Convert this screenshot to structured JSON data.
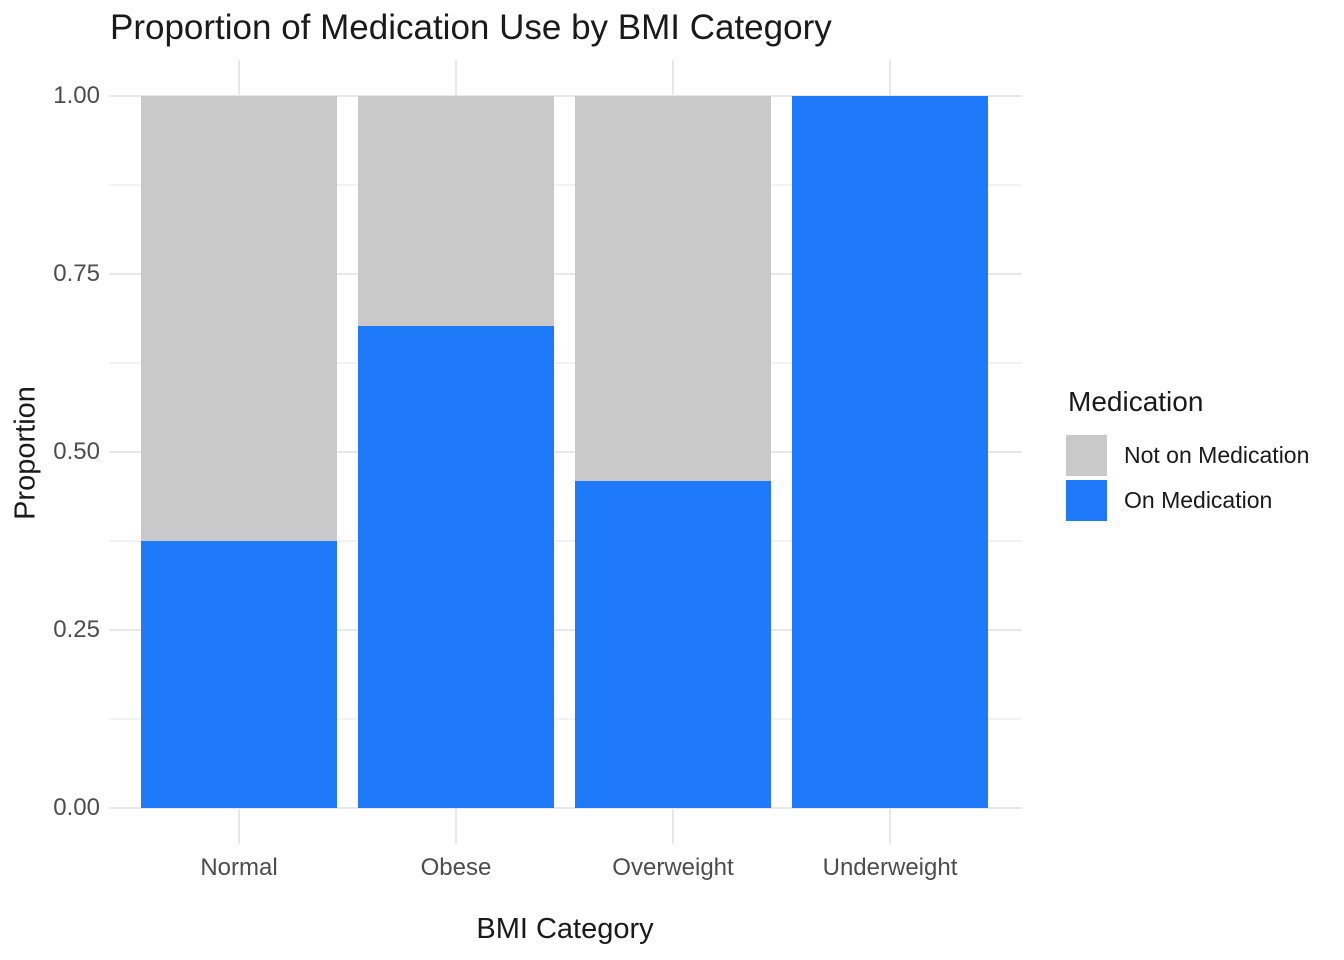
{
  "chart_data": {
    "type": "bar",
    "stacked": true,
    "orientation": "vertical",
    "title": "Proportion of Medication Use by BMI Category",
    "xlabel": "BMI Category",
    "ylabel": "Proportion",
    "categories": [
      "Normal",
      "Obese",
      "Overweight",
      "Underweight"
    ],
    "series": [
      {
        "name": "On Medication",
        "color": "#1e7af8",
        "values": [
          0.375,
          0.677,
          0.459,
          1.0
        ]
      },
      {
        "name": "Not on Medication",
        "color": "#c9c9c9",
        "values": [
          0.625,
          0.323,
          0.541,
          0.0
        ]
      }
    ],
    "ylim": [
      0,
      1
    ],
    "yticks": [
      {
        "value": 0.0,
        "label": "0.00"
      },
      {
        "value": 0.25,
        "label": "0.25"
      },
      {
        "value": 0.5,
        "label": "0.50"
      },
      {
        "value": 0.75,
        "label": "0.75"
      },
      {
        "value": 1.0,
        "label": "1.00"
      }
    ],
    "minor_gridlines": [
      0.125,
      0.375,
      0.625,
      0.875
    ],
    "grid": "horizontal major+minor, vertical major at categories",
    "legend": {
      "title": "Medication",
      "position": "right",
      "items": [
        {
          "label": "Not on Medication",
          "color": "#c9c9c9"
        },
        {
          "label": "On Medication",
          "color": "#1e7af8"
        }
      ]
    }
  },
  "colors": {
    "bar_on_medication": "#1e7af8",
    "bar_not_on_medication": "#c9c9c9",
    "grid_major": "#e8e8e8",
    "grid_minor": "#f3f3f3",
    "axis_tick_text": "#4d4d4d",
    "title_text": "#1a1a1a",
    "background": "#ffffff"
  }
}
